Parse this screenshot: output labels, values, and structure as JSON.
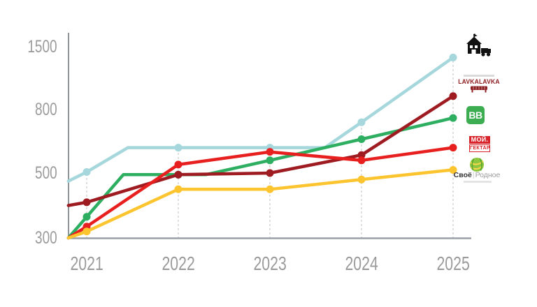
{
  "page": {
    "background": "#ffffff"
  },
  "chart_data": {
    "type": "line",
    "title": "",
    "xlabel": "",
    "ylabel": "",
    "x": [
      2021,
      2022,
      2023,
      2024,
      2025
    ],
    "x_labels": [
      "2021",
      "2022",
      "2023",
      "2024",
      "2025"
    ],
    "y_ticks": [
      300,
      500,
      800,
      1500
    ],
    "y_tick_labels": [
      "300",
      "500",
      "800",
      "1500"
    ],
    "y_axis_note": "ticks evenly spaced (non-linear scale)",
    "grid": "vertical dashed line at each year up to top series",
    "legend_position": "right (brand logos, ordered by 2025 endpoint)",
    "axis_color": "#8f969b",
    "gridline_color": "#cbcbcb",
    "label_color": "#9b9b9b",
    "series": [
      {
        "name": "Ешь Деревенское",
        "color": "#a5d7dc",
        "values": [
          505,
          620,
          620,
          740,
          1380
        ],
        "path": [
          [
            2020.8,
            475
          ],
          [
            2021,
            505
          ],
          [
            2021.45,
            620
          ],
          [
            2023.6,
            620
          ],
          [
            2024,
            740
          ],
          [
            2025,
            1380
          ]
        ]
      },
      {
        "name": "LavkaLavka",
        "color": "#9e1c21",
        "values": [
          410,
          495,
          500,
          585,
          950
        ],
        "path": [
          [
            2020.8,
            400
          ],
          [
            2021,
            410
          ],
          [
            2022,
            495
          ],
          [
            2023,
            500
          ],
          [
            2024,
            585
          ],
          [
            2025,
            950
          ]
        ]
      },
      {
        "name": "ВкусВилл",
        "color": "#2eae61",
        "values": [
          365,
          495,
          560,
          660,
          760
        ],
        "path": [
          [
            2020.8,
            300
          ],
          [
            2021,
            365
          ],
          [
            2021.4,
            495
          ],
          [
            2022.3,
            495
          ],
          [
            2023,
            560
          ],
          [
            2024,
            660
          ],
          [
            2025,
            760
          ]
        ]
      },
      {
        "name": "Мой Гектар",
        "color": "#e71f1f",
        "values": [
          335,
          540,
          600,
          560,
          620
        ],
        "path": [
          [
            2020.8,
            300
          ],
          [
            2021,
            335
          ],
          [
            2022,
            540
          ],
          [
            2023,
            600
          ],
          [
            2024,
            560
          ],
          [
            2025,
            620
          ]
        ]
      },
      {
        "name": "Своё Родное",
        "color": "#fcc52f",
        "values": [
          320,
          450,
          450,
          480,
          515
        ],
        "path": [
          [
            2020.8,
            300
          ],
          [
            2021,
            320
          ],
          [
            2022,
            450
          ],
          [
            2023,
            450
          ],
          [
            2024,
            480
          ],
          [
            2025,
            515
          ]
        ]
      }
    ]
  },
  "legend": {
    "items": [
      {
        "id": "esh-derevenskoe",
        "kind": "black-pictogram-logo"
      },
      {
        "id": "lavkalavka",
        "text": "LAVKALAVKA"
      },
      {
        "id": "vkusvill",
        "text": "ВВ"
      },
      {
        "id": "moy-gektar",
        "text_top": "МОЙ.",
        "text_bottom": "ГЕКТАР"
      },
      {
        "id": "svoe-rodnoe",
        "text_main": "Своё",
        "text_divider": "|",
        "text_secondary": "Родное"
      }
    ]
  }
}
